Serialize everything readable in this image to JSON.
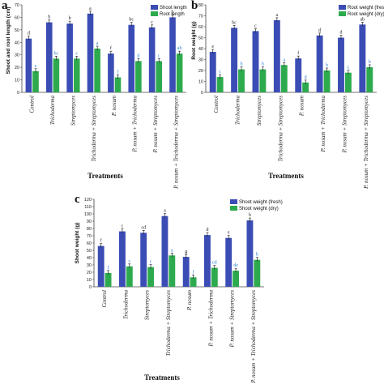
{
  "colors": {
    "fresh": "#3B4DB5",
    "dry": "#2EAA4E",
    "fresh_label": "#1a1a1a",
    "dry_label": "#2a7fd1"
  },
  "categories": [
    "Control",
    "Trichoderma",
    "Streptomyces",
    "Trichoderma + Streptomyces",
    "P. nosum",
    "P. nosum + Trichoderma",
    "P. nosum + Streptomyces",
    "P. nosum + Trichoderma + Streptomyces"
  ],
  "xlabel": "Treatments",
  "chart_data": [
    {
      "type": "bar",
      "panel": "a",
      "ylabel": "Shoot and root length (cm)",
      "ylim": [
        0,
        70
      ],
      "ticks": [
        0,
        10,
        20,
        30,
        40,
        50,
        60,
        70
      ],
      "legend_position": "top-right",
      "categories": [
        "Control",
        "Trichoderma",
        "Streptomyces",
        "Trichoderma + Streptomyces",
        "P. nosum",
        "P. nosum + Trichoderma",
        "P. nosum + Streptomyces",
        "P. nosum + Trichoderma + Streptomyces"
      ],
      "series": [
        {
          "name": "Shoot length",
          "values": [
            43,
            56,
            55,
            63,
            31,
            54,
            52,
            60
          ],
          "labels": [
            "d",
            "b",
            "b",
            "a",
            "f",
            "bc",
            "c",
            "b"
          ]
        },
        {
          "name": "Root length",
          "values": [
            17,
            27,
            27,
            35,
            12,
            25,
            25,
            31
          ],
          "labels": [
            "e",
            "bc",
            "c",
            "a",
            "f",
            "d",
            "c",
            "ab"
          ]
        }
      ]
    },
    {
      "type": "bar",
      "panel": "b",
      "ylabel": "Root weight (g)",
      "ylim": [
        0,
        80
      ],
      "ticks": [
        0,
        10,
        20,
        30,
        40,
        50,
        60,
        70,
        80
      ],
      "legend_position": "top-right",
      "categories": [
        "Control",
        "Trichoderma",
        "Streptomyces",
        "Trichoderma + Streptomyces",
        "P. nosum",
        "P. nosum + Trichoderma",
        "P. nosum + Streptomyces",
        "P. nosum + Trichoderma + Streptomyces"
      ],
      "series": [
        {
          "name": "Root weight (fresh)",
          "values": [
            37,
            59,
            56,
            66,
            31,
            52,
            50,
            62
          ],
          "labels": [
            "e",
            "bc",
            "c",
            "a",
            "f",
            "d",
            "d",
            "ab"
          ]
        },
        {
          "name": "Root weight (dry)",
          "values": [
            14,
            21,
            21,
            25,
            9,
            20,
            18,
            23
          ],
          "labels": [
            "c",
            "b",
            "b",
            "a",
            "d",
            "b",
            "c",
            "b"
          ]
        }
      ]
    },
    {
      "type": "bar",
      "panel": "c",
      "ylabel": "Shoot weight (g)",
      "ylim": [
        0,
        120
      ],
      "ticks": [
        0,
        10,
        20,
        30,
        40,
        50,
        60,
        70,
        80,
        90,
        100,
        110,
        120
      ],
      "legend_position": "top-right",
      "categories": [
        "Control",
        "Trichoderma",
        "Streptomyces",
        "Trichoderma + Streptomyces",
        "P. nosum",
        "P. nosum + Trichoderma",
        "P. nosum + Streptomyces",
        "P. nosum + Trichoderma + Streptomyces"
      ],
      "series": [
        {
          "name": "Shoot weight (fresh)",
          "values": [
            56,
            76,
            74,
            97,
            41,
            71,
            67,
            91
          ],
          "labels": [
            "f",
            "c",
            "cd",
            "a",
            "g",
            "d",
            "e",
            "b"
          ]
        },
        {
          "name": "Shoot weight (dry)",
          "values": [
            19,
            28,
            27,
            43,
            13,
            26,
            22,
            37
          ],
          "labels": [
            "f",
            "c",
            "c",
            "a",
            "f",
            "cd",
            "de",
            "b"
          ]
        }
      ]
    }
  ]
}
